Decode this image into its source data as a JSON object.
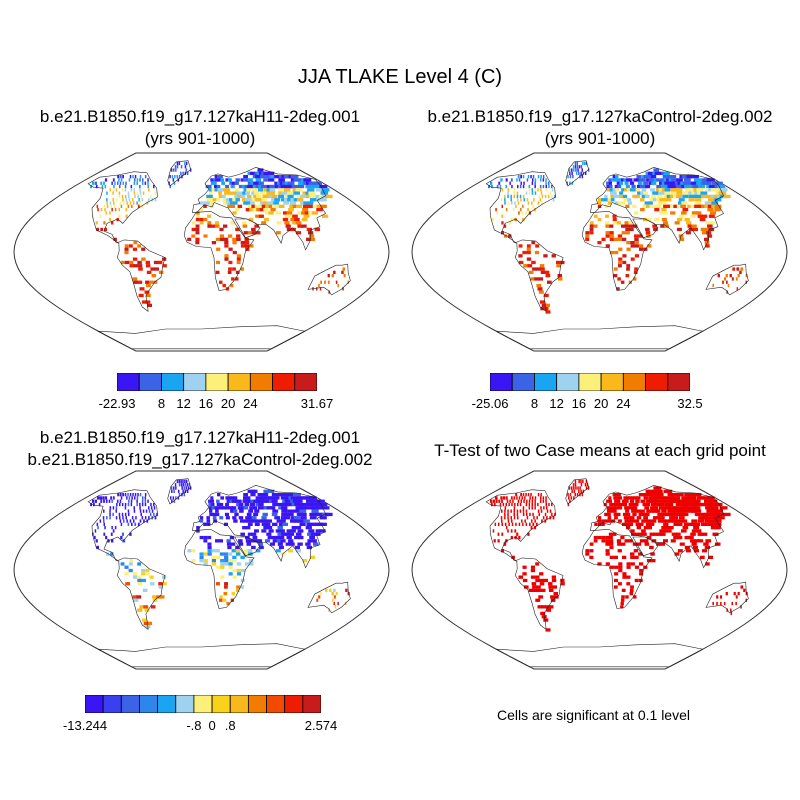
{
  "title": "JJA TLAKE Level 4 (C)",
  "panels": [
    {
      "id": "case1",
      "title_line1": "b.e21.B1850.f19_g17.127kaH11-2deg.001",
      "title_line2": "(yrs 901-1000)",
      "colorbar": {
        "colors": [
          "#3a16f5",
          "#3c62e6",
          "#1aa5f2",
          "#9ed2ef",
          "#fdf07a",
          "#f9b81c",
          "#f27c00",
          "#ee1c00",
          "#c81c1c"
        ],
        "labels": [
          "-22.93",
          "8",
          "12",
          "16",
          "20",
          "24",
          "31.67"
        ]
      }
    },
    {
      "id": "case2",
      "title_line1": "b.e21.B1850.f19_g17.127kaControl-2deg.002",
      "title_line2": "(yrs 901-1000)",
      "colorbar": {
        "colors": [
          "#3a16f5",
          "#3c62e6",
          "#1aa5f2",
          "#9ed2ef",
          "#fdf07a",
          "#f9b81c",
          "#f27c00",
          "#ee1c00",
          "#c81c1c"
        ],
        "labels": [
          "-25.06",
          "8",
          "12",
          "16",
          "20",
          "24",
          "32.5"
        ]
      }
    },
    {
      "id": "diff",
      "title_line1": "b.e21.B1850.f19_g17.127kaH11-2deg.001",
      "title_line2": "b.e21.B1850.f19_g17.127kaControl-2deg.002",
      "colorbar": {
        "colors": [
          "#3a16f5",
          "#3a3ff0",
          "#3c62e6",
          "#2f86ea",
          "#1aa5f2",
          "#9ed2ef",
          "#fdf07a",
          "#f9d21c",
          "#f9b81c",
          "#f27c00",
          "#f24a00",
          "#ee1c00",
          "#c81c1c"
        ],
        "labels": [
          "-13.244",
          "-.8",
          "0",
          ".8",
          "2.574"
        ]
      }
    },
    {
      "id": "ttest",
      "title_line1": "T-Test of two Case means at each grid point",
      "footnote": "Cells are significant at 0.1 level"
    }
  ]
}
